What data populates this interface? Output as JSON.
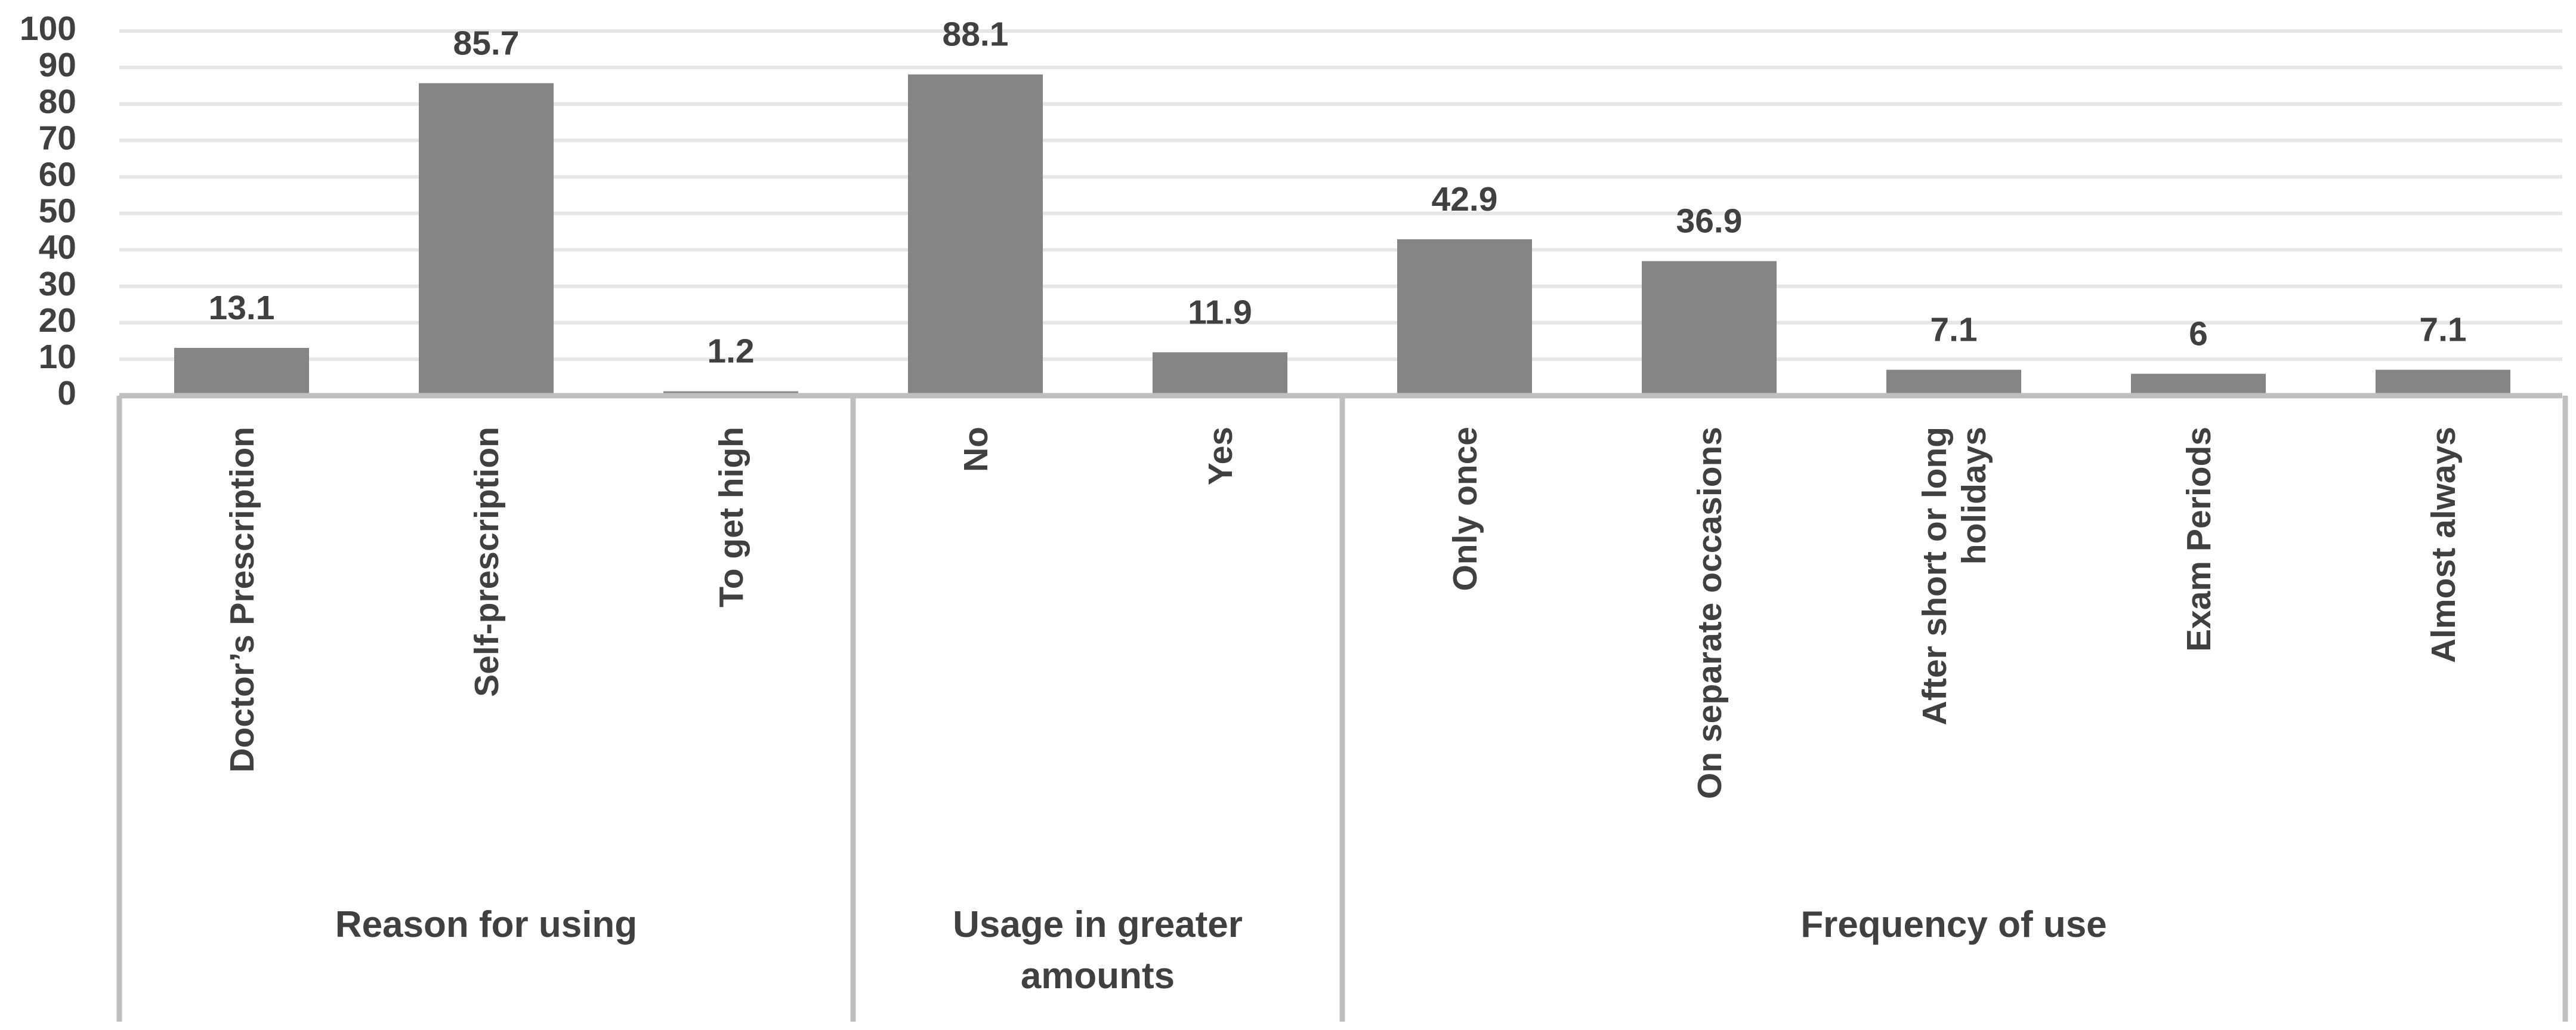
{
  "chart_data": {
    "type": "bar",
    "title": "",
    "xlabel": "",
    "ylabel": "",
    "ylim": [
      0,
      100
    ],
    "yticks": [
      0,
      10,
      20,
      30,
      40,
      50,
      60,
      70,
      80,
      90,
      100
    ],
    "grid": true,
    "legend": "none",
    "bar_color": "#858585",
    "groups": [
      {
        "name": "Reason for using",
        "categories": [
          "Doctor’s Prescription",
          "Self-prescription",
          "To get high"
        ],
        "values": [
          13.1,
          85.7,
          1.2
        ]
      },
      {
        "name": "Usage in greater amounts",
        "name_lines": [
          "Usage in greater",
          "amounts"
        ],
        "categories": [
          "No",
          "Yes"
        ],
        "values": [
          88.1,
          11.9
        ]
      },
      {
        "name": "Frequency of use",
        "categories": [
          "Only once",
          "On separate occasions",
          "After short or long holidays",
          "Exam Periods",
          "Almost always"
        ],
        "category_lines": [
          [
            "Only once"
          ],
          [
            "On separate occasions"
          ],
          [
            "After short or long",
            "holidays"
          ],
          [
            "Exam Periods"
          ],
          [
            "Almost always"
          ]
        ],
        "values": [
          42.9,
          36.9,
          7.1,
          6,
          7.1
        ]
      }
    ]
  }
}
